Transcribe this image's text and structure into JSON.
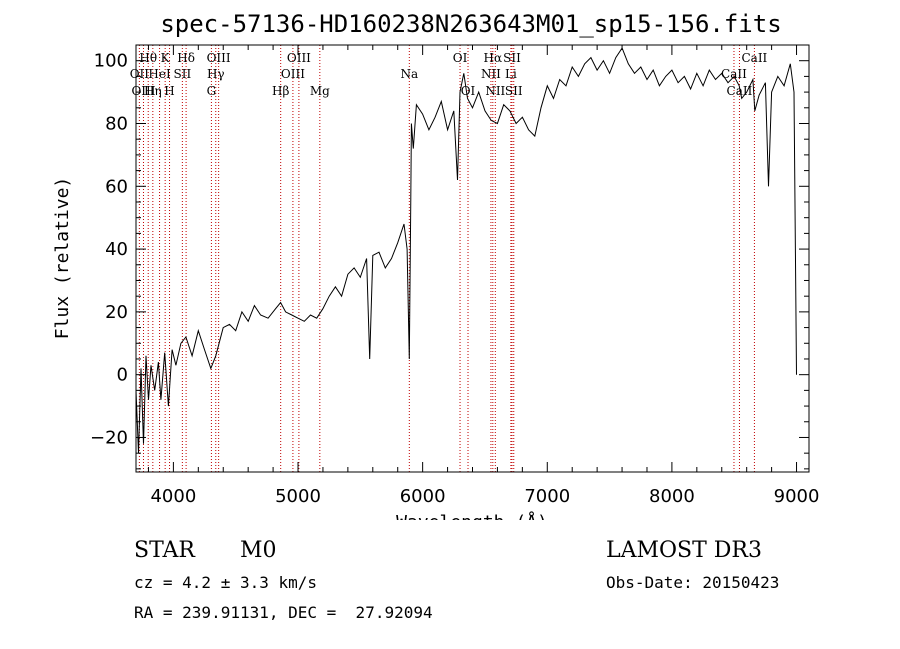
{
  "chart_data": {
    "type": "line",
    "title": "spec-57136-HD160238N263643M01_sp15-156.fits",
    "xlabel": "Wavelength (Å)",
    "ylabel": "Flux (relative)",
    "xlim": [
      3700,
      9100
    ],
    "ylim": [
      -31,
      105
    ],
    "xticks": [
      4000,
      5000,
      6000,
      7000,
      8000,
      9000
    ],
    "yticks": [
      -20,
      0,
      20,
      40,
      60,
      80,
      100
    ],
    "grid": false,
    "series": [
      {
        "x": [
          3700,
          3720,
          3740,
          3760,
          3780,
          3800,
          3820,
          3850,
          3880,
          3900,
          3930,
          3960,
          3990,
          4020,
          4060,
          4100,
          4150,
          4200,
          4250,
          4300,
          4340,
          4400,
          4450,
          4500,
          4550,
          4600,
          4650,
          4700,
          4760,
          4820,
          4860,
          4900,
          4950,
          5000,
          5050,
          5100,
          5150,
          5200,
          5250,
          5300,
          5350,
          5400,
          5450,
          5500,
          5550,
          5575,
          5600,
          5650,
          5700,
          5750,
          5800,
          5850,
          5875,
          5893,
          5905,
          5910,
          5925,
          5950,
          6000,
          6050,
          6100,
          6150,
          6200,
          6250,
          6280,
          6300,
          6330,
          6360,
          6400,
          6450,
          6500,
          6550,
          6600,
          6650,
          6700,
          6750,
          6800,
          6850,
          6900,
          6950,
          7000,
          7050,
          7100,
          7150,
          7200,
          7250,
          7300,
          7350,
          7400,
          7450,
          7500,
          7550,
          7600,
          7650,
          7700,
          7750,
          7800,
          7850,
          7900,
          7950,
          8000,
          8050,
          8100,
          8150,
          8200,
          8250,
          8300,
          8350,
          8400,
          8450,
          8500,
          8540,
          8560,
          8600,
          8650,
          8665,
          8700,
          8750,
          8775,
          8800,
          8850,
          8900,
          8950,
          8980,
          9000
        ],
        "y": [
          -5,
          -25,
          2,
          -22,
          6,
          -8,
          3,
          -5,
          4,
          -8,
          7,
          -10,
          8,
          3,
          10,
          12,
          6,
          14,
          8,
          2,
          6,
          15,
          16,
          14,
          20,
          17,
          22,
          19,
          18,
          21,
          23,
          20,
          19,
          18,
          17,
          19,
          18,
          21,
          25,
          28,
          25,
          32,
          34,
          31,
          37,
          5,
          38,
          39,
          34,
          37,
          42,
          48,
          40,
          5,
          56,
          80,
          72,
          86,
          83,
          78,
          82,
          87,
          78,
          84,
          62,
          90,
          96,
          88,
          85,
          90,
          84,
          81,
          80,
          86,
          84,
          80,
          82,
          78,
          76,
          85,
          92,
          88,
          94,
          92,
          98,
          95,
          99,
          101,
          97,
          100,
          96,
          101,
          104,
          99,
          96,
          98,
          94,
          97,
          92,
          95,
          97,
          93,
          95,
          91,
          96,
          92,
          97,
          94,
          96,
          93,
          95,
          92,
          88,
          90,
          94,
          84,
          89,
          93,
          60,
          90,
          95,
          92,
          99,
          90,
          0
        ]
      }
    ],
    "lines": [
      {
        "name": "Hθ",
        "wl": 3798,
        "row": 1
      },
      {
        "name": "OII",
        "wl": 3727,
        "row": 2
      },
      {
        "name": "OIII",
        "wl": 3760,
        "row": 3
      },
      {
        "name": "K",
        "wl": 3934,
        "row": 1
      },
      {
        "name": "HeI",
        "wl": 3889,
        "row": 2
      },
      {
        "name": "Hη",
        "wl": 3835,
        "row": 3
      },
      {
        "name": "H",
        "wl": 3969,
        "row": 3
      },
      {
        "name": "SII",
        "wl": 4072,
        "row": 2
      },
      {
        "name": "Hδ",
        "wl": 4102,
        "row": 1
      },
      {
        "name": "OIII",
        "wl": 4363,
        "row": 1
      },
      {
        "name": "Hγ",
        "wl": 4340,
        "row": 2
      },
      {
        "name": "G",
        "wl": 4305,
        "row": 3
      },
      {
        "name": "Hβ",
        "wl": 4861,
        "row": 3
      },
      {
        "name": "OIII",
        "wl": 4959,
        "row": 2
      },
      {
        "name": "OIII",
        "wl": 5007,
        "row": 1
      },
      {
        "name": "Mg",
        "wl": 5175,
        "row": 3
      },
      {
        "name": "Na",
        "wl": 5893,
        "row": 2
      },
      {
        "name": "OI",
        "wl": 6300,
        "row": 1
      },
      {
        "name": "OI",
        "wl": 6364,
        "row": 3
      },
      {
        "name": "Hα",
        "wl": 6563,
        "row": 1
      },
      {
        "name": "NII",
        "wl": 6548,
        "row": 2
      },
      {
        "name": "NII",
        "wl": 6583,
        "row": 3
      },
      {
        "name": "SII",
        "wl": 6717,
        "row": 1
      },
      {
        "name": "Li",
        "wl": 6708,
        "row": 2
      },
      {
        "name": "SII",
        "wl": 6731,
        "row": 3
      },
      {
        "name": "CaII",
        "wl": 8498,
        "row": 2
      },
      {
        "name": "CaII",
        "wl": 8542,
        "row": 3
      },
      {
        "name": "CaII",
        "wl": 8662,
        "row": 1
      }
    ]
  },
  "info": {
    "class": "STAR",
    "subclass": "M0",
    "survey": "LAMOST DR3",
    "cz": "cz = 4.2 ± 3.3 km/s",
    "obsdate": "Obs-Date: 20150423",
    "radec": "RA = 239.91131, DEC =  27.92094"
  }
}
